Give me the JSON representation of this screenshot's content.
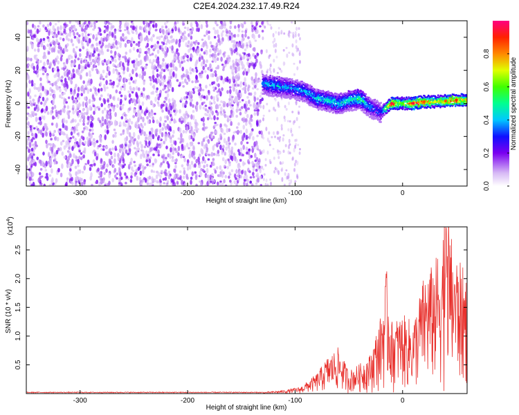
{
  "title": "C2E4.2024.232.17.49.R24",
  "chart_data": [
    {
      "type": "heatmap",
      "xlabel": "Height of straight line (km)",
      "ylabel": "Frequency (Hz)",
      "xlim": [
        -350,
        60
      ],
      "ylim": [
        -50,
        50
      ],
      "x_ticks": [
        -300,
        -200,
        -100,
        0
      ],
      "y_ticks": [
        -40,
        -20,
        0,
        20,
        40
      ],
      "colorbar": {
        "label": "Normalized spectral amplitude",
        "range": [
          0,
          1
        ],
        "ticks": [
          "0.0",
          "0.2",
          "0.4",
          "0.6",
          "0.8"
        ],
        "tick_values": [
          0,
          0.2,
          0.4,
          0.6,
          0.8
        ]
      },
      "noise_region": {
        "x_range": [
          -350,
          -130
        ],
        "amplitude": "low (0.05–0.2)"
      },
      "signal_trace": [
        {
          "x": -130,
          "y": 12,
          "amp": 0.35
        },
        {
          "x": -120,
          "y": 11,
          "amp": 0.4
        },
        {
          "x": -110,
          "y": 10,
          "amp": 0.38
        },
        {
          "x": -100,
          "y": 9,
          "amp": 0.36
        },
        {
          "x": -90,
          "y": 7,
          "amp": 0.4
        },
        {
          "x": -80,
          "y": 3,
          "amp": 0.42
        },
        {
          "x": -70,
          "y": 2,
          "amp": 0.45
        },
        {
          "x": -60,
          "y": 0,
          "amp": 0.42
        },
        {
          "x": -50,
          "y": 2,
          "amp": 0.45
        },
        {
          "x": -40,
          "y": 3,
          "amp": 0.5
        },
        {
          "x": -30,
          "y": -2,
          "amp": 0.35
        },
        {
          "x": -20,
          "y": -5,
          "amp": 0.3
        },
        {
          "x": -10,
          "y": 0,
          "amp": 0.95
        },
        {
          "x": 0,
          "y": 0,
          "amp": 0.6
        },
        {
          "x": 10,
          "y": 0,
          "amp": 0.95
        },
        {
          "x": 20,
          "y": 1,
          "amp": 0.85
        },
        {
          "x": 30,
          "y": 1,
          "amp": 0.7
        },
        {
          "x": 40,
          "y": 1.5,
          "amp": 0.85
        },
        {
          "x": 50,
          "y": 2,
          "amp": 0.9
        },
        {
          "x": 60,
          "y": 2,
          "amp": 0.75
        }
      ]
    },
    {
      "type": "line",
      "xlabel": "Height of straight line (km)",
      "ylabel": "SNR (10 * v/v)",
      "y_multiplier": "(x10",
      "y_exponent": "4",
      "y_multiplier_close": ")",
      "xlim": [
        -350,
        60
      ],
      "ylim": [
        0,
        2.9
      ],
      "x_ticks": [
        -300,
        -200,
        -100,
        0
      ],
      "y_ticks": [
        "0.5",
        "1.0",
        "1.5",
        "2.0",
        "2.5"
      ],
      "y_tick_values": [
        0.5,
        1.0,
        1.5,
        2.0,
        2.5
      ],
      "series": [
        {
          "color": "#e8302c",
          "envelope": [
            {
              "x": -350,
              "y": 0.02
            },
            {
              "x": -130,
              "y": 0.02
            },
            {
              "x": -110,
              "y": 0.05
            },
            {
              "x": -95,
              "y": 0.1
            },
            {
              "x": -80,
              "y": 0.3
            },
            {
              "x": -70,
              "y": 0.55
            },
            {
              "x": -60,
              "y": 0.7
            },
            {
              "x": -50,
              "y": 0.35
            },
            {
              "x": -40,
              "y": 0.45
            },
            {
              "x": -30,
              "y": 0.6
            },
            {
              "x": -20,
              "y": 1.2
            },
            {
              "x": -15,
              "y": 1.9
            },
            {
              "x": -10,
              "y": 1.1
            },
            {
              "x": 0,
              "y": 1.2
            },
            {
              "x": 10,
              "y": 1.1
            },
            {
              "x": 20,
              "y": 1.8
            },
            {
              "x": 30,
              "y": 2.0
            },
            {
              "x": 40,
              "y": 2.7
            },
            {
              "x": 50,
              "y": 2.1
            },
            {
              "x": 60,
              "y": 1.8
            }
          ]
        }
      ]
    }
  ]
}
